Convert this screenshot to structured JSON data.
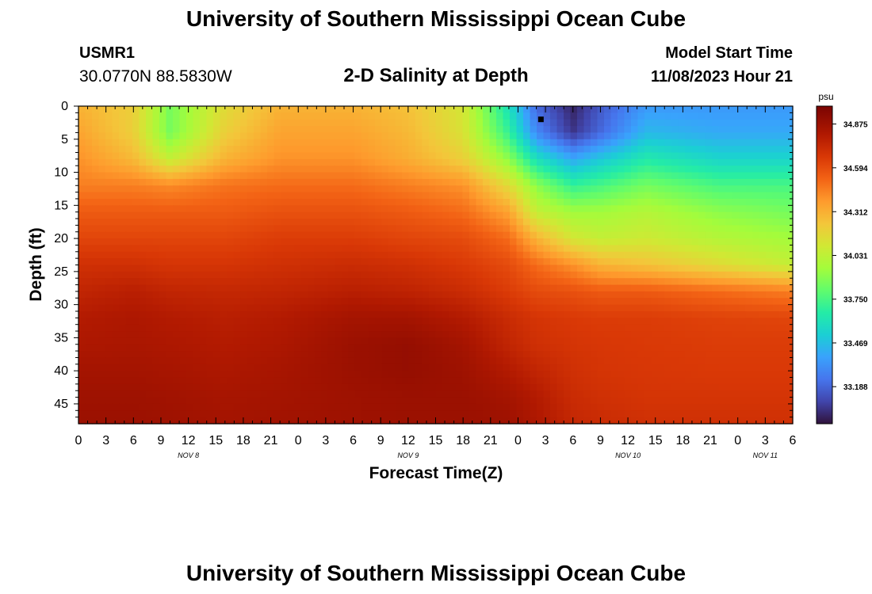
{
  "header": {
    "title": "University of Southern Mississippi Ocean Cube",
    "station": "USMR1",
    "coordinates": "30.0770N  88.5830W",
    "subtitle": "2-D Salinity at Depth",
    "model_start_label": "Model Start Time",
    "model_start_value": "11/08/2023 Hour 21"
  },
  "footer": {
    "title": "University of Southern Mississippi Ocean Cube"
  },
  "chart_data": {
    "type": "heatmap",
    "title": "2-D Salinity at Depth",
    "xlabel": "Forecast Time(Z)",
    "ylabel": "Depth (ft)",
    "x_tick_labels": [
      "0",
      "3",
      "6",
      "9",
      "12",
      "15",
      "18",
      "21",
      "0",
      "3",
      "6",
      "9",
      "12",
      "15",
      "18",
      "21",
      "0",
      "3",
      "6",
      "9",
      "12",
      "15",
      "18",
      "21",
      "0",
      "3",
      "6"
    ],
    "x_range_hours": [
      0,
      78
    ],
    "date_labels": [
      {
        "label": "NOV 8",
        "hour": 12
      },
      {
        "label": "NOV 9",
        "hour": 36
      },
      {
        "label": "NOV 10",
        "hour": 60
      },
      {
        "label": "NOV 11",
        "hour": 75
      }
    ],
    "y_ticks": [
      0,
      5,
      10,
      15,
      20,
      25,
      30,
      35,
      40,
      45
    ],
    "y_range_ft": [
      0,
      48
    ],
    "colorbar": {
      "unit": "psu",
      "min": 32.95,
      "max": 34.99,
      "ticks": [
        "34.875",
        "34.594",
        "34.312",
        "34.031",
        "33.750",
        "33.469",
        "33.188"
      ]
    },
    "field_samples": {
      "hours": [
        0,
        6,
        10,
        16,
        22,
        30,
        36,
        42,
        47,
        50,
        54,
        57,
        62,
        70,
        78
      ],
      "depths_ft": [
        0,
        4,
        8,
        12,
        16,
        20,
        24,
        28,
        32,
        36,
        40,
        44,
        48
      ],
      "values_psu": [
        [
          34.3,
          34.2,
          33.85,
          34.15,
          34.3,
          34.3,
          34.25,
          34.1,
          33.6,
          33.2,
          33.0,
          33.15,
          33.35,
          33.35,
          33.35
        ],
        [
          34.35,
          34.2,
          33.85,
          34.2,
          34.35,
          34.35,
          34.28,
          34.12,
          33.7,
          33.3,
          33.05,
          33.2,
          33.45,
          33.4,
          33.4
        ],
        [
          34.4,
          34.28,
          34.05,
          34.3,
          34.4,
          34.4,
          34.32,
          34.2,
          33.9,
          33.6,
          33.4,
          33.5,
          33.65,
          33.55,
          33.55
        ],
        [
          34.45,
          34.45,
          34.42,
          34.48,
          34.5,
          34.5,
          34.45,
          34.4,
          34.15,
          33.9,
          33.7,
          33.75,
          33.85,
          33.75,
          33.75
        ],
        [
          34.55,
          34.55,
          34.55,
          34.55,
          34.58,
          34.58,
          34.55,
          34.5,
          34.35,
          34.05,
          33.95,
          33.95,
          34.0,
          33.9,
          33.85
        ],
        [
          34.62,
          34.62,
          34.62,
          34.62,
          34.65,
          34.65,
          34.62,
          34.6,
          34.5,
          34.3,
          34.1,
          34.05,
          34.08,
          34.0,
          33.95
        ],
        [
          34.7,
          34.7,
          34.68,
          34.68,
          34.7,
          34.72,
          34.7,
          34.66,
          34.6,
          34.5,
          34.4,
          34.3,
          34.25,
          34.15,
          34.05
        ],
        [
          34.75,
          34.78,
          34.75,
          34.74,
          34.75,
          34.78,
          34.76,
          34.72,
          34.65,
          34.6,
          34.58,
          34.55,
          34.55,
          34.5,
          34.45
        ],
        [
          34.8,
          34.82,
          34.8,
          34.78,
          34.8,
          34.85,
          34.85,
          34.8,
          34.72,
          34.68,
          34.66,
          34.65,
          34.65,
          34.63,
          34.62
        ],
        [
          34.82,
          34.83,
          34.82,
          34.8,
          34.82,
          34.88,
          34.9,
          34.85,
          34.75,
          34.7,
          34.68,
          34.67,
          34.66,
          34.65,
          34.65
        ],
        [
          34.85,
          34.85,
          34.84,
          34.82,
          34.84,
          34.88,
          34.9,
          34.87,
          34.8,
          34.75,
          34.7,
          34.68,
          34.67,
          34.66,
          34.66
        ],
        [
          34.87,
          34.87,
          34.86,
          34.84,
          34.85,
          34.87,
          34.88,
          34.88,
          34.85,
          34.8,
          34.72,
          34.7,
          34.68,
          34.68,
          34.68
        ],
        [
          34.88,
          34.88,
          34.87,
          34.85,
          34.86,
          34.87,
          34.88,
          34.88,
          34.87,
          34.82,
          34.74,
          34.72,
          34.7,
          34.7,
          34.7
        ]
      ]
    },
    "marker": {
      "hour": 50.5,
      "depth_ft": 2
    }
  }
}
